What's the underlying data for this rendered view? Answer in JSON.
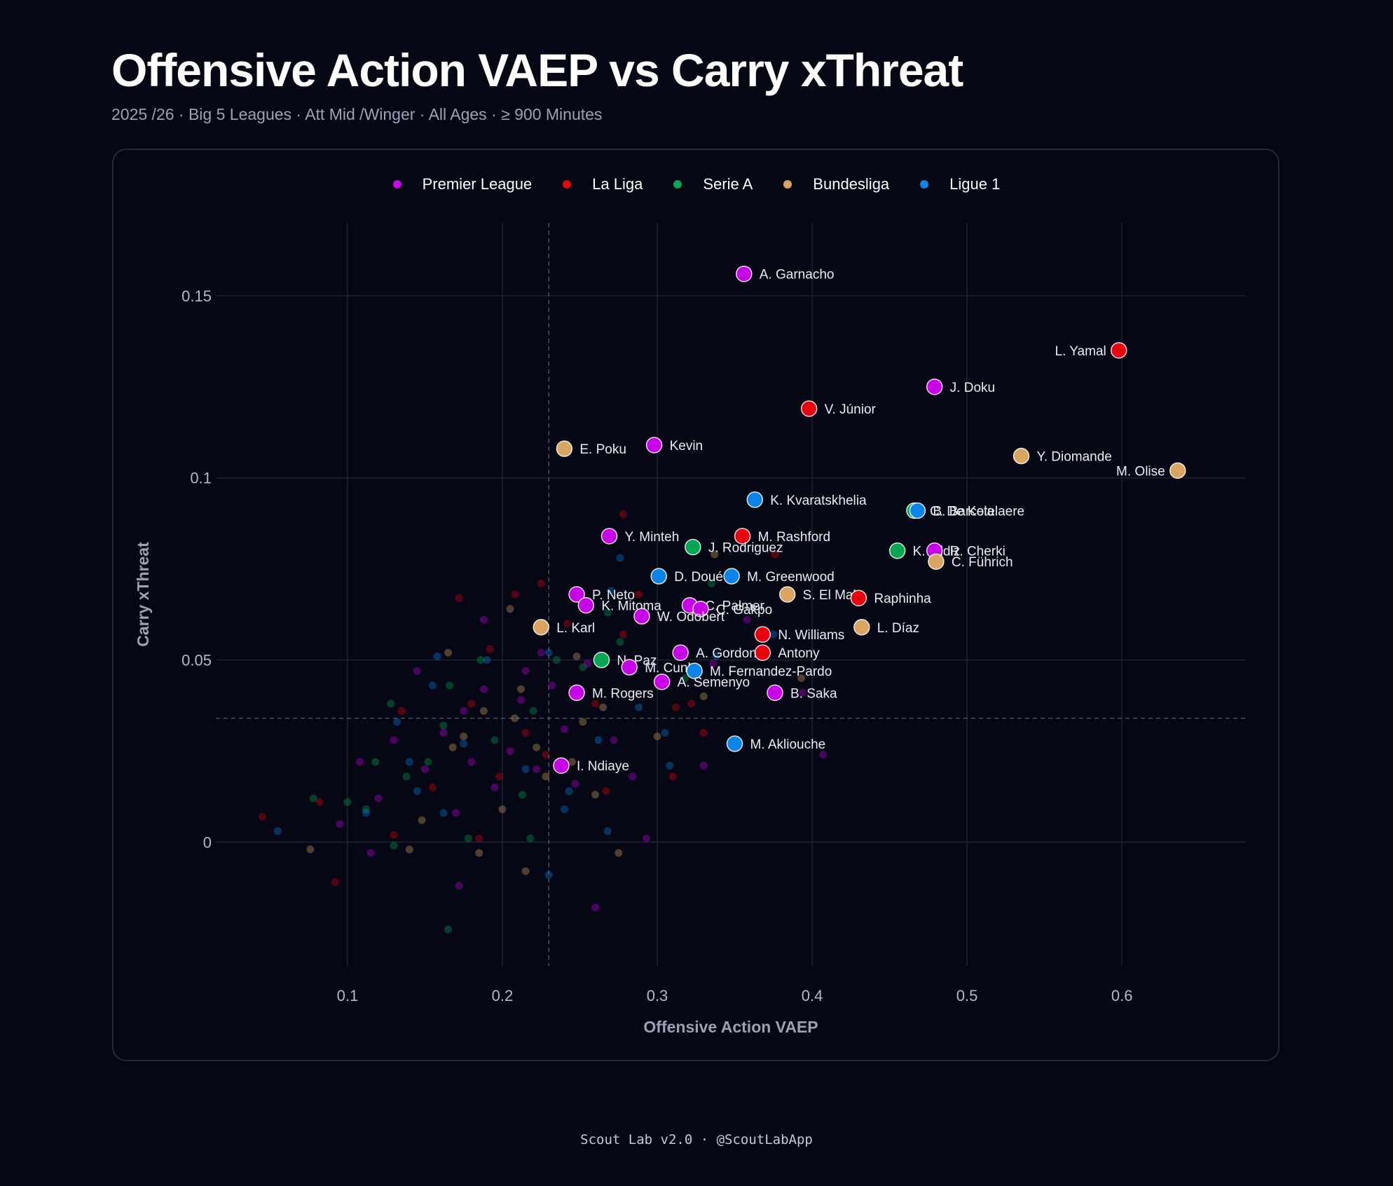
{
  "header": {
    "title": "Offensive Action VAEP vs Carry xThreat",
    "subtitle": "2025 /26  · Big 5 Leagues  · Att Mid /Winger  · All Ages  · ≥ 900  Minutes"
  },
  "footer": "Scout Lab v2.0 · @ScoutLabApp",
  "colors": {
    "background": "#050814",
    "Premier League": "#c800e8",
    "La Liga": "#e8000c",
    "Serie A": "#00a651",
    "Bundesliga": "#d9a560",
    "Ligue 1": "#0a84e8"
  },
  "chart_data": {
    "type": "scatter",
    "title": "Offensive Action VAEP vs Carry xThreat",
    "xlabel": "Offensive Action VAEP",
    "ylabel": "Carry xThreat",
    "xlim": [
      0.015,
      0.68
    ],
    "ylim": [
      -0.034,
      0.17
    ],
    "xticks": [
      0.1,
      0.2,
      0.3,
      0.4,
      0.5,
      0.6
    ],
    "xtick_labels": [
      "0.1",
      "0.2",
      "0.3",
      "0.4",
      "0.5",
      "0.6"
    ],
    "yticks": [
      0,
      0.05,
      0.1,
      0.15
    ],
    "ytick_labels": [
      "0",
      "0.05",
      "0.1",
      "0.15"
    ],
    "grid": true,
    "legend_position": "top-center",
    "reference_lines": {
      "x": 0.23,
      "y": 0.034
    },
    "legend": [
      "Premier League",
      "La Liga",
      "Serie A",
      "Bundesliga",
      "Ligue 1"
    ],
    "highlighted": [
      {
        "name": "A. Garnacho",
        "league": "Premier League",
        "x": 0.356,
        "y": 0.156
      },
      {
        "name": "L. Yamal",
        "league": "La Liga",
        "x": 0.598,
        "y": 0.135,
        "label_side": "left"
      },
      {
        "name": "J. Doku",
        "league": "Premier League",
        "x": 0.479,
        "y": 0.125
      },
      {
        "name": "V. Júnior",
        "league": "La Liga",
        "x": 0.398,
        "y": 0.119
      },
      {
        "name": "Kevin",
        "league": "Premier League",
        "x": 0.298,
        "y": 0.109
      },
      {
        "name": "E. Poku",
        "league": "Bundesliga",
        "x": 0.24,
        "y": 0.108
      },
      {
        "name": "Y. Diomande",
        "league": "Bundesliga",
        "x": 0.535,
        "y": 0.106
      },
      {
        "name": "M. Olise",
        "league": "Bundesliga",
        "x": 0.636,
        "y": 0.102,
        "label_side": "left"
      },
      {
        "name": "K. Kvaratskhelia",
        "league": "Ligue 1",
        "x": 0.363,
        "y": 0.094
      },
      {
        "name": "C. De Ketelaere",
        "league": "Serie A",
        "x": 0.466,
        "y": 0.091
      },
      {
        "name": "B. Barcola",
        "league": "Ligue 1",
        "x": 0.468,
        "y": 0.091
      },
      {
        "name": "Y. Minteh",
        "league": "Premier League",
        "x": 0.269,
        "y": 0.084
      },
      {
        "name": "M. Rashford",
        "league": "La Liga",
        "x": 0.355,
        "y": 0.084
      },
      {
        "name": "J. Rodriguez",
        "league": "Serie A",
        "x": 0.323,
        "y": 0.081
      },
      {
        "name": "K. Yildiz",
        "league": "Serie A",
        "x": 0.455,
        "y": 0.08
      },
      {
        "name": "R. Cherki",
        "league": "Premier League",
        "x": 0.479,
        "y": 0.08
      },
      {
        "name": "C. Führich",
        "league": "Bundesliga",
        "x": 0.48,
        "y": 0.077
      },
      {
        "name": "D. Doué",
        "league": "Ligue 1",
        "x": 0.301,
        "y": 0.073
      },
      {
        "name": "M. Greenwood",
        "league": "Ligue 1",
        "x": 0.348,
        "y": 0.073
      },
      {
        "name": "P. Neto",
        "league": "Premier League",
        "x": 0.248,
        "y": 0.068
      },
      {
        "name": "S. El Mala",
        "league": "Bundesliga",
        "x": 0.384,
        "y": 0.068
      },
      {
        "name": "Raphinha",
        "league": "La Liga",
        "x": 0.43,
        "y": 0.067
      },
      {
        "name": "K. Mitoma",
        "league": "Premier League",
        "x": 0.254,
        "y": 0.065
      },
      {
        "name": "C. Palmer",
        "league": "Premier League",
        "x": 0.321,
        "y": 0.065
      },
      {
        "name": "C. Gakpo",
        "league": "Premier League",
        "x": 0.328,
        "y": 0.064
      },
      {
        "name": "W. Odobert",
        "league": "Premier League",
        "x": 0.29,
        "y": 0.062
      },
      {
        "name": "L. Karl",
        "league": "Bundesliga",
        "x": 0.225,
        "y": 0.059
      },
      {
        "name": "L. Díaz",
        "league": "Bundesliga",
        "x": 0.432,
        "y": 0.059
      },
      {
        "name": "N. Williams",
        "league": "La Liga",
        "x": 0.368,
        "y": 0.057
      },
      {
        "name": "Antony",
        "league": "La Liga",
        "x": 0.368,
        "y": 0.052
      },
      {
        "name": "A. Gordon",
        "league": "Premier League",
        "x": 0.315,
        "y": 0.052
      },
      {
        "name": "N. Paz",
        "league": "Serie A",
        "x": 0.264,
        "y": 0.05
      },
      {
        "name": "M. Cunha",
        "league": "Premier League",
        "x": 0.282,
        "y": 0.048
      },
      {
        "name": "M. Fernandez-Pardo",
        "league": "Ligue 1",
        "x": 0.324,
        "y": 0.047
      },
      {
        "name": "A. Semenyo",
        "league": "Premier League",
        "x": 0.303,
        "y": 0.044
      },
      {
        "name": "M. Rogers",
        "league": "Premier League",
        "x": 0.248,
        "y": 0.041
      },
      {
        "name": "B. Saka",
        "league": "Premier League",
        "x": 0.376,
        "y": 0.041
      },
      {
        "name": "M. Akliouche",
        "league": "Ligue 1",
        "x": 0.35,
        "y": 0.027
      },
      {
        "name": "I. Ndiaye",
        "league": "Premier League",
        "x": 0.238,
        "y": 0.021
      }
    ],
    "background_points": [
      {
        "league": "Premier League",
        "x": 0.095,
        "y": 0.005
      },
      {
        "league": "Premier League",
        "x": 0.108,
        "y": 0.022
      },
      {
        "league": "Premier League",
        "x": 0.12,
        "y": 0.012
      },
      {
        "league": "Premier League",
        "x": 0.13,
        "y": 0.028
      },
      {
        "league": "Premier League",
        "x": 0.145,
        "y": 0.047
      },
      {
        "league": "Premier League",
        "x": 0.15,
        "y": 0.02
      },
      {
        "league": "Premier League",
        "x": 0.162,
        "y": 0.03
      },
      {
        "league": "Premier League",
        "x": 0.17,
        "y": 0.008
      },
      {
        "league": "Premier League",
        "x": 0.175,
        "y": 0.036
      },
      {
        "league": "Premier League",
        "x": 0.18,
        "y": 0.022
      },
      {
        "league": "Premier League",
        "x": 0.188,
        "y": 0.042
      },
      {
        "league": "Premier League",
        "x": 0.188,
        "y": 0.061
      },
      {
        "league": "Premier League",
        "x": 0.195,
        "y": 0.015
      },
      {
        "league": "Premier League",
        "x": 0.205,
        "y": 0.025
      },
      {
        "league": "Premier League",
        "x": 0.212,
        "y": 0.039
      },
      {
        "league": "Premier League",
        "x": 0.215,
        "y": 0.047
      },
      {
        "league": "Premier League",
        "x": 0.222,
        "y": 0.02
      },
      {
        "league": "Premier League",
        "x": 0.225,
        "y": 0.052
      },
      {
        "league": "Premier League",
        "x": 0.232,
        "y": 0.043
      },
      {
        "league": "Premier League",
        "x": 0.24,
        "y": 0.031
      },
      {
        "league": "Premier League",
        "x": 0.247,
        "y": 0.016
      },
      {
        "league": "Premier League",
        "x": 0.255,
        "y": 0.049
      },
      {
        "league": "Premier League",
        "x": 0.26,
        "y": -0.018
      },
      {
        "league": "Premier League",
        "x": 0.272,
        "y": 0.028
      },
      {
        "league": "Premier League",
        "x": 0.284,
        "y": 0.018
      },
      {
        "league": "Premier League",
        "x": 0.293,
        "y": 0.001
      },
      {
        "league": "Premier League",
        "x": 0.33,
        "y": 0.021
      },
      {
        "league": "Premier League",
        "x": 0.336,
        "y": 0.049
      },
      {
        "league": "Premier League",
        "x": 0.358,
        "y": 0.061
      },
      {
        "league": "Premier League",
        "x": 0.394,
        "y": 0.041
      },
      {
        "league": "Premier League",
        "x": 0.407,
        "y": 0.024
      },
      {
        "league": "Premier League",
        "x": 0.172,
        "y": -0.012
      },
      {
        "league": "Premier League",
        "x": 0.115,
        "y": -0.003
      },
      {
        "league": "La Liga",
        "x": 0.045,
        "y": 0.007
      },
      {
        "league": "La Liga",
        "x": 0.082,
        "y": 0.011
      },
      {
        "league": "La Liga",
        "x": 0.092,
        "y": -0.011
      },
      {
        "league": "La Liga",
        "x": 0.13,
        "y": 0.002
      },
      {
        "league": "La Liga",
        "x": 0.135,
        "y": 0.036
      },
      {
        "league": "La Liga",
        "x": 0.155,
        "y": 0.015
      },
      {
        "league": "La Liga",
        "x": 0.172,
        "y": 0.067
      },
      {
        "league": "La Liga",
        "x": 0.18,
        "y": 0.038
      },
      {
        "league": "La Liga",
        "x": 0.185,
        "y": 0.001
      },
      {
        "league": "La Liga",
        "x": 0.192,
        "y": 0.053
      },
      {
        "league": "La Liga",
        "x": 0.198,
        "y": 0.018
      },
      {
        "league": "La Liga",
        "x": 0.208,
        "y": 0.068
      },
      {
        "league": "La Liga",
        "x": 0.215,
        "y": 0.03
      },
      {
        "league": "La Liga",
        "x": 0.225,
        "y": 0.071
      },
      {
        "league": "La Liga",
        "x": 0.228,
        "y": 0.024
      },
      {
        "league": "La Liga",
        "x": 0.242,
        "y": 0.06
      },
      {
        "league": "La Liga",
        "x": 0.26,
        "y": 0.038
      },
      {
        "league": "La Liga",
        "x": 0.267,
        "y": 0.014
      },
      {
        "league": "La Liga",
        "x": 0.278,
        "y": 0.057
      },
      {
        "league": "La Liga",
        "x": 0.278,
        "y": 0.09
      },
      {
        "league": "La Liga",
        "x": 0.288,
        "y": 0.068
      },
      {
        "league": "La Liga",
        "x": 0.312,
        "y": 0.037
      },
      {
        "league": "La Liga",
        "x": 0.322,
        "y": 0.038
      },
      {
        "league": "La Liga",
        "x": 0.33,
        "y": 0.03
      },
      {
        "league": "La Liga",
        "x": 0.31,
        "y": 0.018
      },
      {
        "league": "La Liga",
        "x": 0.376,
        "y": 0.079
      },
      {
        "league": "Serie A",
        "x": 0.078,
        "y": 0.012
      },
      {
        "league": "Serie A",
        "x": 0.1,
        "y": 0.011
      },
      {
        "league": "Serie A",
        "x": 0.112,
        "y": 0.009
      },
      {
        "league": "Serie A",
        "x": 0.118,
        "y": 0.022
      },
      {
        "league": "Serie A",
        "x": 0.128,
        "y": 0.038
      },
      {
        "league": "Serie A",
        "x": 0.13,
        "y": -0.001
      },
      {
        "league": "Serie A",
        "x": 0.138,
        "y": 0.018
      },
      {
        "league": "Serie A",
        "x": 0.152,
        "y": 0.022
      },
      {
        "league": "Serie A",
        "x": 0.162,
        "y": 0.032
      },
      {
        "league": "Serie A",
        "x": 0.166,
        "y": 0.043
      },
      {
        "league": "Serie A",
        "x": 0.165,
        "y": -0.024
      },
      {
        "league": "Serie A",
        "x": 0.178,
        "y": 0.001
      },
      {
        "league": "Serie A",
        "x": 0.186,
        "y": 0.05
      },
      {
        "league": "Serie A",
        "x": 0.195,
        "y": 0.028
      },
      {
        "league": "Serie A",
        "x": 0.213,
        "y": 0.013
      },
      {
        "league": "Serie A",
        "x": 0.22,
        "y": 0.036
      },
      {
        "league": "Serie A",
        "x": 0.235,
        "y": 0.05
      },
      {
        "league": "Serie A",
        "x": 0.252,
        "y": 0.048
      },
      {
        "league": "Serie A",
        "x": 0.268,
        "y": 0.063
      },
      {
        "league": "Serie A",
        "x": 0.276,
        "y": 0.055
      },
      {
        "league": "Serie A",
        "x": 0.318,
        "y": 0.045
      },
      {
        "league": "Serie A",
        "x": 0.335,
        "y": 0.071
      },
      {
        "league": "Serie A",
        "x": 0.218,
        "y": 0.001
      },
      {
        "league": "Bundesliga",
        "x": 0.076,
        "y": -0.002
      },
      {
        "league": "Bundesliga",
        "x": 0.14,
        "y": -0.002
      },
      {
        "league": "Bundesliga",
        "x": 0.148,
        "y": 0.006
      },
      {
        "league": "Bundesliga",
        "x": 0.165,
        "y": 0.052
      },
      {
        "league": "Bundesliga",
        "x": 0.168,
        "y": 0.026
      },
      {
        "league": "Bundesliga",
        "x": 0.175,
        "y": 0.029
      },
      {
        "league": "Bundesliga",
        "x": 0.185,
        "y": -0.003
      },
      {
        "league": "Bundesliga",
        "x": 0.188,
        "y": 0.036
      },
      {
        "league": "Bundesliga",
        "x": 0.2,
        "y": 0.009
      },
      {
        "league": "Bundesliga",
        "x": 0.205,
        "y": 0.064
      },
      {
        "league": "Bundesliga",
        "x": 0.208,
        "y": 0.034
      },
      {
        "league": "Bundesliga",
        "x": 0.212,
        "y": 0.042
      },
      {
        "league": "Bundesliga",
        "x": 0.215,
        "y": -0.008
      },
      {
        "league": "Bundesliga",
        "x": 0.222,
        "y": 0.026
      },
      {
        "league": "Bundesliga",
        "x": 0.228,
        "y": 0.018
      },
      {
        "league": "Bundesliga",
        "x": 0.245,
        "y": 0.022
      },
      {
        "league": "Bundesliga",
        "x": 0.248,
        "y": 0.051
      },
      {
        "league": "Bundesliga",
        "x": 0.252,
        "y": 0.033
      },
      {
        "league": "Bundesliga",
        "x": 0.26,
        "y": 0.013
      },
      {
        "league": "Bundesliga",
        "x": 0.265,
        "y": 0.037
      },
      {
        "league": "Bundesliga",
        "x": 0.275,
        "y": -0.003
      },
      {
        "league": "Bundesliga",
        "x": 0.3,
        "y": 0.029
      },
      {
        "league": "Bundesliga",
        "x": 0.33,
        "y": 0.04
      },
      {
        "league": "Bundesliga",
        "x": 0.337,
        "y": 0.079
      },
      {
        "league": "Bundesliga",
        "x": 0.393,
        "y": 0.045
      },
      {
        "league": "Ligue 1",
        "x": 0.055,
        "y": 0.003
      },
      {
        "league": "Ligue 1",
        "x": 0.112,
        "y": 0.008
      },
      {
        "league": "Ligue 1",
        "x": 0.132,
        "y": 0.033
      },
      {
        "league": "Ligue 1",
        "x": 0.14,
        "y": 0.022
      },
      {
        "league": "Ligue 1",
        "x": 0.145,
        "y": 0.014
      },
      {
        "league": "Ligue 1",
        "x": 0.155,
        "y": 0.043
      },
      {
        "league": "Ligue 1",
        "x": 0.158,
        "y": 0.051
      },
      {
        "league": "Ligue 1",
        "x": 0.162,
        "y": 0.008
      },
      {
        "league": "Ligue 1",
        "x": 0.175,
        "y": 0.027
      },
      {
        "league": "Ligue 1",
        "x": 0.19,
        "y": 0.05
      },
      {
        "league": "Ligue 1",
        "x": 0.215,
        "y": 0.02
      },
      {
        "league": "Ligue 1",
        "x": 0.23,
        "y": 0.052
      },
      {
        "league": "Ligue 1",
        "x": 0.23,
        "y": -0.009
      },
      {
        "league": "Ligue 1",
        "x": 0.24,
        "y": 0.009
      },
      {
        "league": "Ligue 1",
        "x": 0.243,
        "y": 0.014
      },
      {
        "league": "Ligue 1",
        "x": 0.262,
        "y": 0.028
      },
      {
        "league": "Ligue 1",
        "x": 0.268,
        "y": 0.003
      },
      {
        "league": "Ligue 1",
        "x": 0.27,
        "y": 0.069
      },
      {
        "league": "Ligue 1",
        "x": 0.276,
        "y": 0.078
      },
      {
        "league": "Ligue 1",
        "x": 0.288,
        "y": 0.037
      },
      {
        "league": "Ligue 1",
        "x": 0.305,
        "y": 0.03
      },
      {
        "league": "Ligue 1",
        "x": 0.308,
        "y": 0.021
      },
      {
        "league": "Ligue 1",
        "x": 0.338,
        "y": 0.051
      },
      {
        "league": "Ligue 1",
        "x": 0.375,
        "y": 0.057
      }
    ]
  }
}
